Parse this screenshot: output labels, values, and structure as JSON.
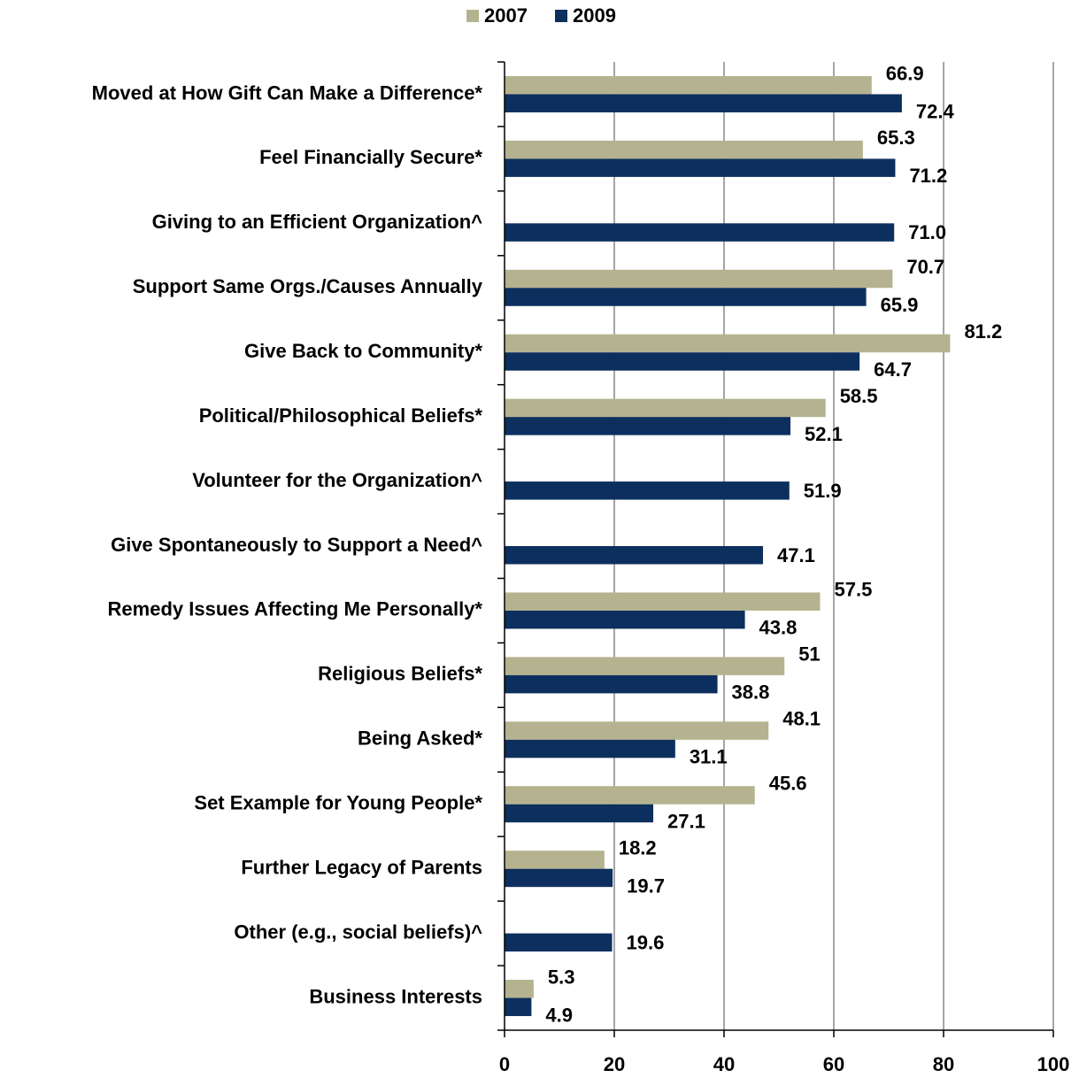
{
  "chart_data": {
    "type": "hbar",
    "categories": [
      "Moved at How Gift Can Make a Difference*",
      "Feel Financially Secure*",
      "Giving to an Efficient Organization^",
      "Support Same Orgs./Causes Annually",
      "Give Back to Community*",
      "Political/Philosophical Beliefs*",
      "Volunteer for the Organization^",
      "Give Spontaneously to Support a Need^",
      "Remedy Issues Affecting Me Personally*",
      "Religious Beliefs*",
      "Being Asked*",
      "Set Example for Young People*",
      "Further Legacy of Parents",
      "Other (e.g., social beliefs)^",
      "Business Interests"
    ],
    "series": [
      {
        "name": "2007",
        "color": "#b5b38f",
        "values": [
          66.9,
          65.3,
          null,
          70.7,
          81.2,
          58.5,
          null,
          null,
          57.5,
          51,
          48.1,
          45.6,
          18.2,
          null,
          5.3
        ]
      },
      {
        "name": "2009",
        "color": "#0d2f5e",
        "values": [
          72.4,
          71.2,
          71,
          65.9,
          64.7,
          52.1,
          51.9,
          47.1,
          43.8,
          38.8,
          31.1,
          27.1,
          19.7,
          19.6,
          4.9
        ],
        "value_labels": [
          "72.4",
          "71.2",
          "71.0",
          "65.9",
          "64.7",
          "52.1",
          "51.9",
          "47.1",
          "43.8",
          "38.8",
          "31.1",
          "27.1",
          "19.7",
          "19.6",
          "4.9"
        ]
      }
    ],
    "xlim": [
      0,
      100
    ],
    "xticks": [
      0,
      20,
      40,
      60,
      80,
      100
    ],
    "grid": true,
    "legend": "top"
  }
}
